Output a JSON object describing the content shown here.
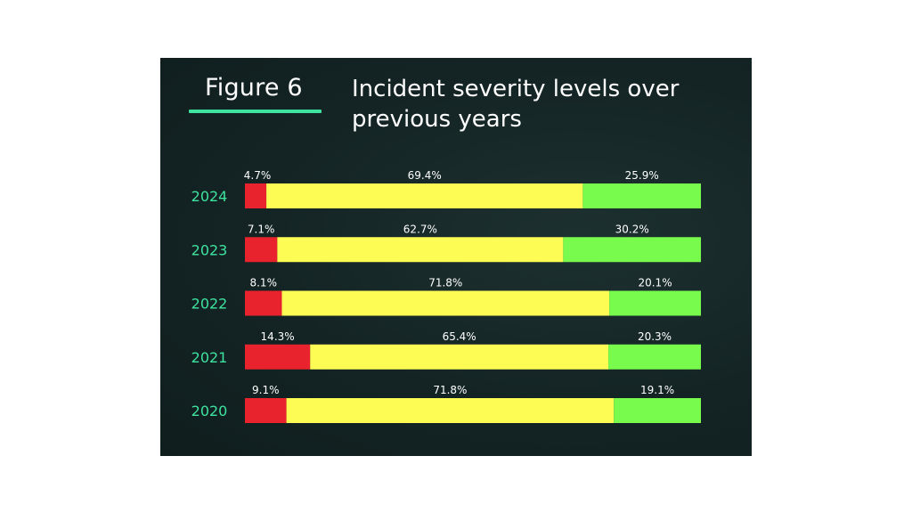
{
  "header": {
    "figure_label": "Figure 6",
    "title": "Incident severity levels over previous years"
  },
  "colors": {
    "panel_bg": "#142424",
    "accent": "#3ee3a0",
    "high": "#e8232e",
    "medium": "#fcfc55",
    "low": "#79fb4e"
  },
  "chart_data": {
    "type": "bar",
    "orientation": "horizontal",
    "stacked": true,
    "normalized": true,
    "title": "Incident severity levels over previous years",
    "categories": [
      "2024",
      "2023",
      "2022",
      "2021",
      "2020"
    ],
    "series": [
      {
        "color": "#e8232e",
        "values": [
          4.7,
          7.1,
          8.1,
          14.3,
          9.1
        ],
        "labels": [
          "4.7%",
          "7.1%",
          "8.1%",
          "14.3%",
          "9.1%"
        ]
      },
      {
        "color": "#fcfc55",
        "values": [
          69.4,
          62.7,
          71.8,
          65.4,
          71.8
        ],
        "labels": [
          "69.4%",
          "62.7%",
          "71.8%",
          "65.4%",
          "71.8%"
        ]
      },
      {
        "color": "#79fb4e",
        "values": [
          25.9,
          30.2,
          20.1,
          20.3,
          19.1
        ],
        "labels": [
          "25.9%",
          "30.2%",
          "20.1%",
          "20.3%",
          "19.1%"
        ]
      }
    ],
    "xlim": [
      0,
      100
    ],
    "grid": false,
    "legend": "none"
  }
}
